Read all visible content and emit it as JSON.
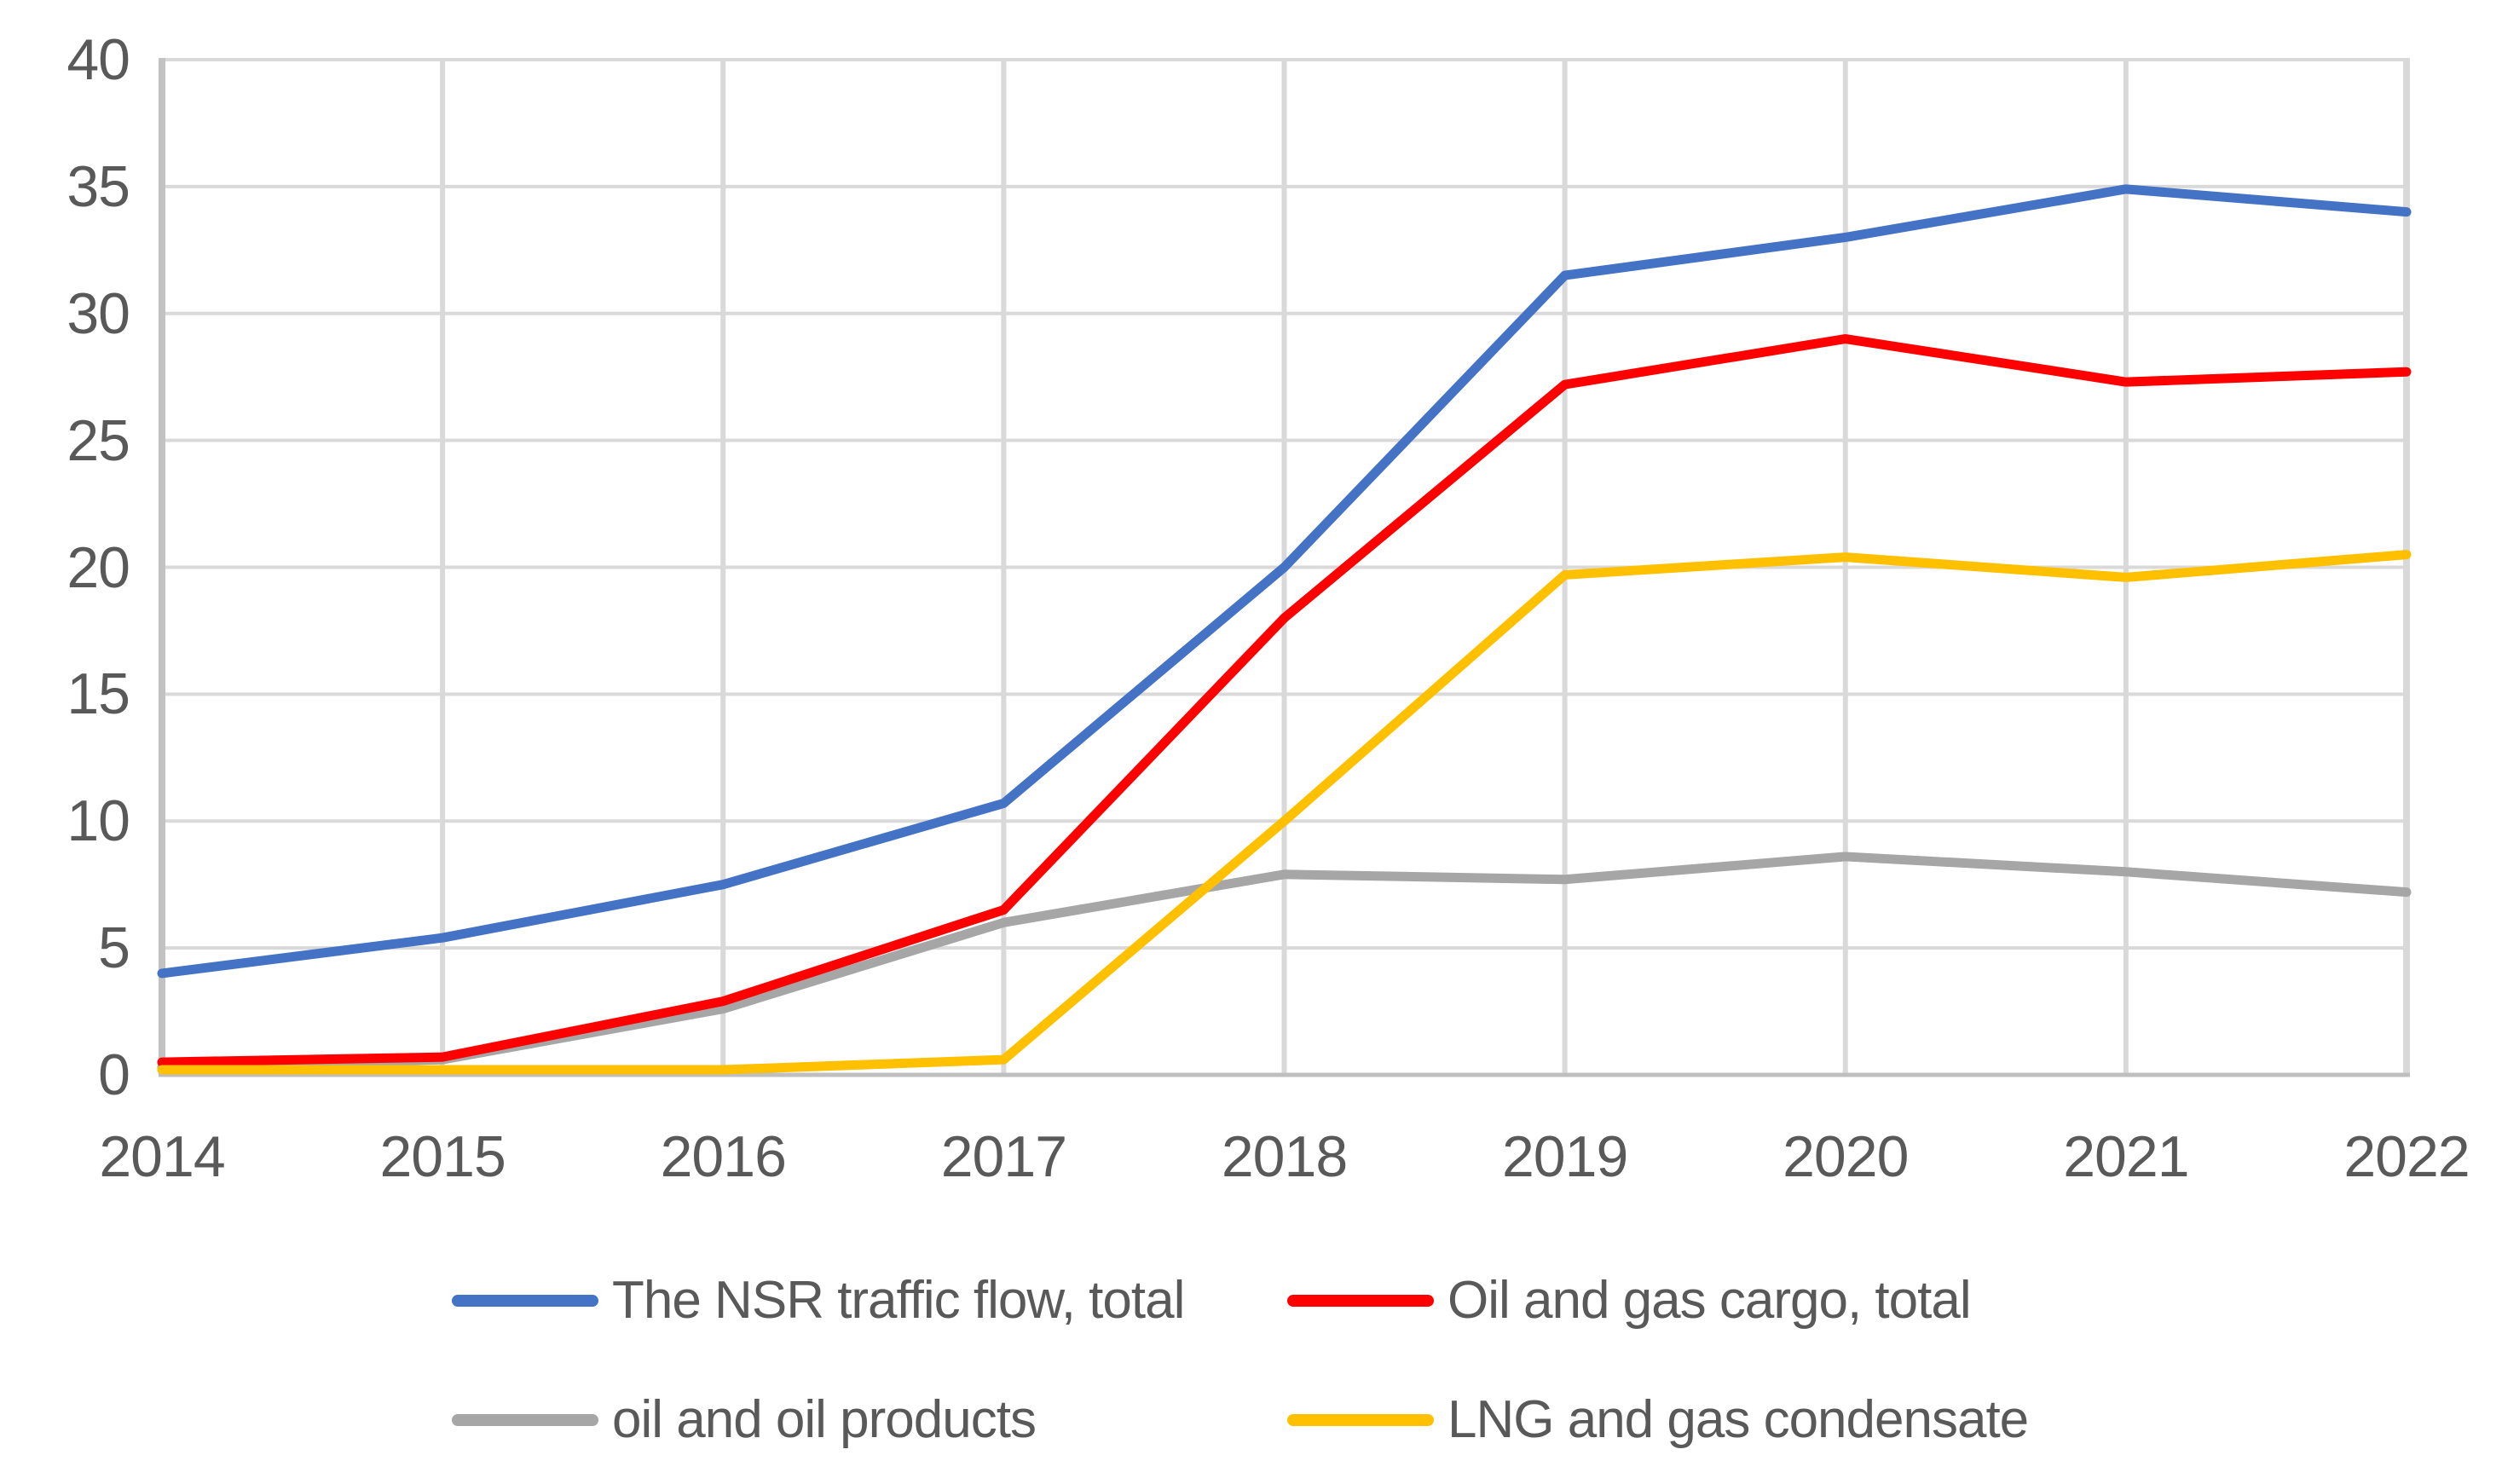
{
  "chart_data": {
    "type": "line",
    "x": [
      "2014",
      "2015",
      "2016",
      "2017",
      "2018",
      "2019",
      "2020",
      "2021",
      "2022"
    ],
    "series": [
      {
        "name": "The NSR traffic flow, total",
        "color": "#4472C4",
        "values": [
          4.0,
          5.4,
          7.5,
          10.7,
          20.0,
          31.5,
          33.0,
          34.9,
          34.0
        ]
      },
      {
        "name": "Oil and gas cargo, total",
        "color": "#FF0000",
        "values": [
          0.5,
          0.7,
          2.9,
          6.5,
          18.0,
          27.2,
          29.0,
          27.3,
          27.7
        ]
      },
      {
        "name": "oil and oil products",
        "color": "#A6A6A6",
        "values": [
          0.3,
          0.6,
          2.6,
          6.0,
          7.9,
          7.7,
          8.6,
          8.0,
          7.2
        ]
      },
      {
        "name": "LNG and gas condensate",
        "color": "#FFC000",
        "values": [
          0.2,
          0.2,
          0.2,
          0.6,
          10.0,
          19.7,
          20.4,
          19.6,
          20.5
        ]
      }
    ],
    "title": "",
    "xlabel": "",
    "ylabel": "",
    "ylim": [
      0,
      40
    ],
    "y_ticks": [
      0,
      5,
      10,
      15,
      20,
      25,
      30,
      35,
      40
    ],
    "y_tick_labels": [
      "0",
      "5",
      "10",
      "15",
      "20",
      "25",
      "30",
      "35",
      "40"
    ],
    "x_tick_labels": [
      "2014",
      "2015",
      "2016",
      "2017",
      "2018",
      "2019",
      "2020",
      "2021",
      "2022"
    ],
    "grid": true,
    "legend_position": "bottom",
    "legend_columns": 2,
    "draw_order": [
      2,
      0,
      1,
      3
    ],
    "colors": {
      "gridline": "#D9D9D9",
      "axis": "#BFBFBF",
      "tick_label": "#595959",
      "background": "#FFFFFF"
    }
  }
}
